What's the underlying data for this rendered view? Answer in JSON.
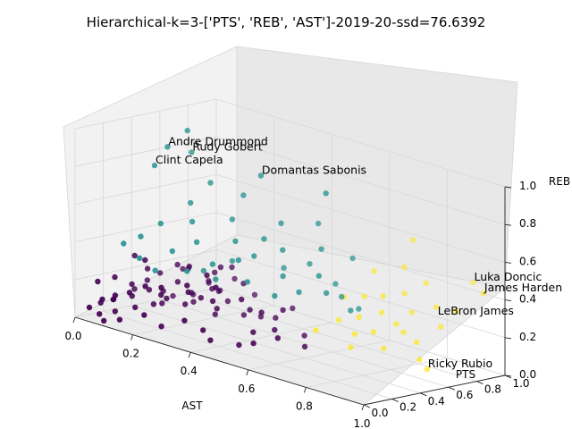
{
  "chart_data": {
    "type": "scatter",
    "title": "Hierarchical-k=3-['PTS', 'REB', 'AST']-2019-20-ssd=76.6392",
    "xlabel": "AST",
    "ylabel": "PTS",
    "zlabel": "REB",
    "xlim": [
      0,
      1
    ],
    "ylim": [
      0,
      1
    ],
    "zlim": [
      0,
      1
    ],
    "x_ticks": [
      "0.0",
      "0.2",
      "0.4",
      "0.6",
      "0.8",
      "1.0"
    ],
    "y_ticks": [
      "0.0",
      "0.2",
      "0.4",
      "0.6",
      "0.8",
      "1.0"
    ],
    "z_ticks": [
      "0.0",
      "0.2",
      "0.4",
      "0.6",
      "0.8",
      "1.0"
    ],
    "grid": true,
    "colors": {
      "cluster_0": "#440154",
      "cluster_1": "#21908d",
      "cluster_2": "#fde725",
      "pane": "#f2f2f2",
      "grid": "#d8d8d8"
    },
    "series": [
      {
        "cluster": 0,
        "color": "#440154",
        "points": [
          [
            0.03,
            0.04,
            0.06
          ],
          [
            0.05,
            0.07,
            0.03
          ],
          [
            0.04,
            0.1,
            0.08
          ],
          [
            0.07,
            0.05,
            0.12
          ],
          [
            0.08,
            0.12,
            0.05
          ],
          [
            0.06,
            0.15,
            0.1
          ],
          [
            0.1,
            0.08,
            0.15
          ],
          [
            0.12,
            0.18,
            0.08
          ],
          [
            0.09,
            0.22,
            0.12
          ],
          [
            0.14,
            0.1,
            0.18
          ],
          [
            0.15,
            0.25,
            0.1
          ],
          [
            0.11,
            0.3,
            0.15
          ],
          [
            0.17,
            0.15,
            0.22
          ],
          [
            0.18,
            0.28,
            0.14
          ],
          [
            0.13,
            0.35,
            0.08
          ],
          [
            0.2,
            0.2,
            0.18
          ],
          [
            0.22,
            0.33,
            0.12
          ],
          [
            0.16,
            0.4,
            0.2
          ],
          [
            0.24,
            0.12,
            0.25
          ],
          [
            0.25,
            0.38,
            0.16
          ],
          [
            0.19,
            0.45,
            0.1
          ],
          [
            0.27,
            0.25,
            0.22
          ],
          [
            0.28,
            0.42,
            0.08
          ],
          [
            0.23,
            0.5,
            0.18
          ],
          [
            0.3,
            0.18,
            0.28
          ],
          [
            0.32,
            0.35,
            0.14
          ],
          [
            0.26,
            0.55,
            0.12
          ],
          [
            0.34,
            0.28,
            0.2
          ],
          [
            0.35,
            0.48,
            0.1
          ],
          [
            0.29,
            0.6,
            0.22
          ],
          [
            0.38,
            0.22,
            0.3
          ],
          [
            0.4,
            0.42,
            0.16
          ],
          [
            0.36,
            0.58,
            0.08
          ],
          [
            0.42,
            0.32,
            0.24
          ],
          [
            0.44,
            0.52,
            0.12
          ],
          [
            0.04,
            0.2,
            0.2
          ],
          [
            0.06,
            0.28,
            0.16
          ],
          [
            0.08,
            0.35,
            0.24
          ],
          [
            0.1,
            0.42,
            0.12
          ],
          [
            0.05,
            0.5,
            0.18
          ],
          [
            0.12,
            0.48,
            0.26
          ],
          [
            0.14,
            0.55,
            0.1
          ],
          [
            0.08,
            0.6,
            0.2
          ],
          [
            0.16,
            0.62,
            0.16
          ],
          [
            0.2,
            0.58,
            0.24
          ],
          [
            0.18,
            0.65,
            0.12
          ],
          [
            0.22,
            0.68,
            0.2
          ],
          [
            0.02,
            0.38,
            0.1
          ],
          [
            0.03,
            0.45,
            0.14
          ],
          [
            0.07,
            0.55,
            0.06
          ],
          [
            0.1,
            0.62,
            0.08
          ],
          [
            0.12,
            0.7,
            0.14
          ],
          [
            0.06,
            0.68,
            0.18
          ],
          [
            0.15,
            0.72,
            0.1
          ],
          [
            0.24,
            0.62,
            0.28
          ],
          [
            0.28,
            0.7,
            0.14
          ],
          [
            0.46,
            0.38,
            0.18
          ],
          [
            0.48,
            0.28,
            0.1
          ],
          [
            0.5,
            0.45,
            0.2
          ],
          [
            0.52,
            0.35,
            0.12
          ],
          [
            0.45,
            0.62,
            0.16
          ],
          [
            0.55,
            0.5,
            0.08
          ],
          [
            0.02,
            0.12,
            0.18
          ],
          [
            0.01,
            0.25,
            0.06
          ],
          [
            0.09,
            0.02,
            0.02
          ],
          [
            0.13,
            0.05,
            0.04
          ],
          [
            0.21,
            0.06,
            0.1
          ],
          [
            0.26,
            0.08,
            0.06
          ],
          [
            0.33,
            0.1,
            0.12
          ],
          [
            0.37,
            0.15,
            0.08
          ],
          [
            0.41,
            0.12,
            0.05
          ],
          [
            0.47,
            0.2,
            0.04
          ],
          [
            0.53,
            0.18,
            0.08
          ],
          [
            0.58,
            0.25,
            0.12
          ],
          [
            0.6,
            0.4,
            0.06
          ],
          [
            0.31,
            0.3,
            0.32
          ],
          [
            0.2,
            0.4,
            0.3
          ],
          [
            0.12,
            0.25,
            0.32
          ],
          [
            0.05,
            0.32,
            0.3
          ],
          [
            0.25,
            0.52,
            0.3
          ]
        ]
      },
      {
        "cluster": 1,
        "color": "#21908d",
        "points": [
          [
            0.12,
            0.55,
            0.96
          ],
          [
            0.1,
            0.45,
            0.88
          ],
          [
            0.12,
            0.58,
            0.84
          ],
          [
            0.35,
            0.6,
            0.82
          ],
          [
            0.6,
            0.55,
            0.85
          ],
          [
            0.08,
            0.4,
            0.78
          ],
          [
            0.2,
            0.55,
            0.72
          ],
          [
            0.28,
            0.62,
            0.68
          ],
          [
            0.18,
            0.45,
            0.62
          ],
          [
            0.3,
            0.5,
            0.58
          ],
          [
            0.42,
            0.6,
            0.6
          ],
          [
            0.5,
            0.7,
            0.62
          ],
          [
            0.22,
            0.38,
            0.55
          ],
          [
            0.35,
            0.42,
            0.5
          ],
          [
            0.15,
            0.3,
            0.52
          ],
          [
            0.25,
            0.35,
            0.46
          ],
          [
            0.4,
            0.45,
            0.44
          ],
          [
            0.45,
            0.55,
            0.48
          ],
          [
            0.55,
            0.62,
            0.52
          ],
          [
            0.12,
            0.22,
            0.45
          ],
          [
            0.2,
            0.28,
            0.4
          ],
          [
            0.32,
            0.32,
            0.38
          ],
          [
            0.38,
            0.38,
            0.42
          ],
          [
            0.5,
            0.45,
            0.38
          ],
          [
            0.6,
            0.5,
            0.42
          ],
          [
            0.08,
            0.18,
            0.4
          ],
          [
            0.15,
            0.15,
            0.36
          ],
          [
            0.28,
            0.22,
            0.34
          ],
          [
            0.35,
            0.28,
            0.32
          ],
          [
            0.45,
            0.3,
            0.35
          ],
          [
            0.52,
            0.35,
            0.3
          ],
          [
            0.58,
            0.4,
            0.34
          ],
          [
            0.65,
            0.45,
            0.36
          ],
          [
            0.42,
            0.62,
            0.36
          ],
          [
            0.48,
            0.68,
            0.4
          ],
          [
            0.55,
            0.72,
            0.32
          ],
          [
            0.62,
            0.62,
            0.3
          ],
          [
            0.7,
            0.52,
            0.28
          ],
          [
            0.3,
            0.5,
            0.36
          ],
          [
            0.25,
            0.4,
            0.3
          ],
          [
            0.58,
            0.78,
            0.46
          ],
          [
            0.18,
            0.2,
            0.3
          ],
          [
            0.65,
            0.68,
            0.24
          ],
          [
            0.4,
            0.52,
            0.52
          ]
        ]
      },
      {
        "cluster": 2,
        "color": "#fde725",
        "points": [
          [
            0.72,
            0.92,
            0.6
          ],
          [
            0.9,
            0.98,
            0.45
          ],
          [
            0.95,
            0.95,
            0.42
          ],
          [
            0.7,
            0.9,
            0.45
          ],
          [
            0.8,
            0.85,
            0.42
          ],
          [
            0.62,
            0.85,
            0.4
          ],
          [
            0.88,
            0.9,
            0.3
          ],
          [
            0.75,
            0.8,
            0.35
          ],
          [
            0.7,
            0.75,
            0.32
          ],
          [
            0.65,
            0.72,
            0.3
          ],
          [
            0.8,
            0.75,
            0.28
          ],
          [
            0.85,
            0.82,
            0.32
          ],
          [
            0.6,
            0.68,
            0.28
          ],
          [
            0.72,
            0.7,
            0.25
          ],
          [
            0.78,
            0.68,
            0.22
          ],
          [
            0.9,
            0.75,
            0.25
          ],
          [
            0.68,
            0.62,
            0.22
          ],
          [
            0.82,
            0.65,
            0.2
          ],
          [
            0.75,
            0.58,
            0.18
          ],
          [
            0.88,
            0.62,
            0.18
          ],
          [
            0.7,
            0.55,
            0.15
          ],
          [
            0.8,
            0.55,
            0.12
          ],
          [
            0.62,
            0.6,
            0.18
          ],
          [
            0.9,
            0.6,
            0.1
          ],
          [
            0.72,
            0.48,
            0.1
          ],
          [
            0.95,
            0.55,
            0.08
          ],
          [
            0.58,
            0.52,
            0.12
          ]
        ]
      }
    ],
    "annotations": [
      {
        "text": "Andre Drummond",
        "x": 0.1,
        "y": 0.45,
        "z": 0.88
      },
      {
        "text": "Clint Capela",
        "x": 0.08,
        "y": 0.4,
        "z": 0.78
      },
      {
        "text": "Rudy Gobert",
        "x": 0.12,
        "y": 0.58,
        "z": 0.84
      },
      {
        "text": "Domantas Sabonis",
        "x": 0.35,
        "y": 0.6,
        "z": 0.82
      },
      {
        "text": "Luka Doncic",
        "x": 0.9,
        "y": 0.98,
        "z": 0.45
      },
      {
        "text": "James Harden",
        "x": 0.95,
        "y": 0.95,
        "z": 0.42
      },
      {
        "text": "LeBron James",
        "x": 0.95,
        "y": 0.62,
        "z": 0.35
      },
      {
        "text": "Ricky Rubio",
        "x": 0.95,
        "y": 0.55,
        "z": 0.08
      }
    ]
  }
}
